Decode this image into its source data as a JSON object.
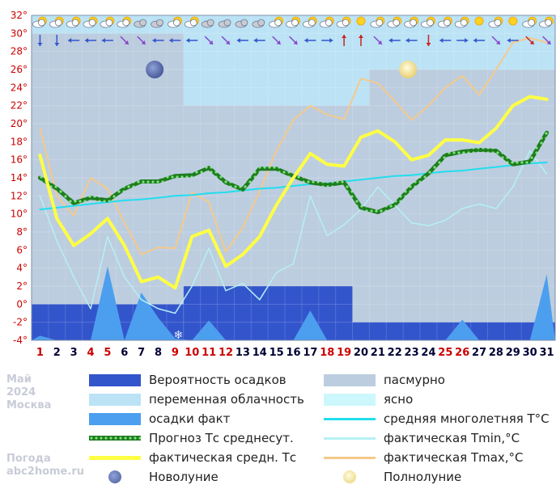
{
  "chart_data": {
    "type": "line",
    "x": [
      1,
      2,
      3,
      4,
      5,
      6,
      7,
      8,
      9,
      10,
      11,
      12,
      13,
      14,
      15,
      16,
      17,
      18,
      19,
      20,
      21,
      22,
      23,
      24,
      25,
      26,
      27,
      28,
      29,
      30,
      31
    ],
    "x_tick_labels": [
      "1",
      "2",
      "3",
      "4",
      "5",
      "6",
      "7",
      "8",
      "9",
      "10",
      "11",
      "12",
      "13",
      "14",
      "15",
      "16",
      "17",
      "18",
      "19",
      "20",
      "21",
      "22",
      "23",
      "24",
      "25",
      "26",
      "27",
      "28",
      "29",
      "30",
      "31"
    ],
    "holiday_days": [
      1,
      4,
      5,
      9,
      10,
      11,
      12,
      18,
      19,
      25,
      26
    ],
    "ylim": [
      -4,
      32
    ],
    "y_ticks": [
      "-4°",
      "-2°",
      "0°",
      "2°",
      "4°",
      "6°",
      "8°",
      "10°",
      "12°",
      "14°",
      "16°",
      "18°",
      "20°",
      "22°",
      "24°",
      "26°",
      "28°",
      "30°",
      "32°"
    ],
    "sky_bands": [
      {
        "from_day": 1,
        "to_day": 10,
        "value": 30,
        "kind": "partly_cloudy"
      },
      {
        "from_day": 10,
        "to_day": 20,
        "value": 22,
        "kind": "partly_cloudy"
      },
      {
        "from_day": 20,
        "to_day": 31,
        "value": 28,
        "kind": "clear"
      },
      {
        "from_day": 20,
        "to_day": 31,
        "value": 26,
        "kind": "partly_cloudy"
      }
    ],
    "precip_probability": [
      {
        "from_day": 1,
        "to_day": 10,
        "value": 0
      },
      {
        "from_day": 10,
        "to_day": 20,
        "value": 2
      },
      {
        "from_day": 20,
        "to_day": 31,
        "value": -2
      }
    ],
    "precip_actual": [
      -3.5,
      -4,
      -4,
      -4,
      4.2,
      -4,
      1.3,
      -1.5,
      -3.8,
      -4,
      -1.8,
      -4,
      -4,
      -4,
      -4,
      -4,
      -0.7,
      -4,
      -4,
      -4,
      -4,
      -4,
      -4,
      -4,
      -4,
      -1.7,
      -4,
      -4,
      -4,
      -4,
      3.3
    ],
    "series": [
      {
        "name": "фактическая Tmax,°C",
        "values": [
          19.5,
          12,
          9.8,
          14,
          12.8,
          9,
          5.5,
          6.3,
          6.2,
          12.4,
          11.3,
          5.8,
          8.5,
          12.5,
          17,
          20.4,
          22,
          21,
          20.5,
          25,
          24.5,
          22.5,
          20.4,
          22,
          24,
          25.3,
          23.2,
          26,
          29,
          29.5,
          29
        ]
      },
      {
        "name": "фактическая Tmin,°C",
        "values": [
          12,
          7,
          3,
          -0.5,
          7.5,
          3,
          0.5,
          -0.5,
          -1,
          2,
          6.2,
          1.5,
          2.3,
          0.5,
          3.5,
          4.5,
          12,
          7.6,
          8.8,
          10.5,
          13,
          11,
          9,
          8.7,
          9.3,
          10.6,
          11.1,
          10.6,
          13,
          17,
          14.4
        ]
      },
      {
        "name": "средняя многолетняя Т°С",
        "values": [
          10.5,
          10.7,
          10.9,
          11.1,
          11.3,
          11.5,
          11.6,
          11.8,
          12.0,
          12.1,
          12.3,
          12.4,
          12.6,
          12.8,
          12.9,
          13.1,
          13.3,
          13.4,
          13.6,
          13.8,
          14.0,
          14.2,
          14.3,
          14.5,
          14.7,
          14.8,
          15.0,
          15.2,
          15.4,
          15.6,
          15.7
        ]
      },
      {
        "name": "Прогноз Тс среднесут.",
        "values": [
          14,
          12.8,
          11.2,
          11.8,
          11.5,
          12.8,
          13.6,
          13.6,
          14.2,
          14.3,
          15.1,
          13.5,
          12.7,
          15,
          15,
          14.2,
          13.5,
          13.2,
          13.5,
          10.7,
          10.2,
          11,
          13,
          14.5,
          16.5,
          16.9,
          17.1,
          17,
          15.5,
          15.8,
          19
        ]
      },
      {
        "name": "фактическая средн. Тс",
        "values": [
          16.5,
          9.5,
          6.5,
          7.8,
          9.5,
          6.5,
          2.5,
          3,
          1.8,
          7.5,
          8.2,
          4.2,
          5.5,
          7.5,
          11,
          14,
          16.7,
          15.5,
          15.3,
          18.5,
          19.2,
          18,
          16,
          16.5,
          18.2,
          18.2,
          17.9,
          19.5,
          22,
          23,
          22.7
        ]
      }
    ],
    "moon_phases": [
      {
        "day": 8,
        "name": "Новолуние",
        "value": 26
      },
      {
        "day": 23,
        "name": "Полнолуние",
        "value": 26
      }
    ],
    "snow_marker_day": 9,
    "weather_icons": [
      "partly_cloudy",
      "partly_cloudy",
      "partly_cloudy",
      "partly_cloudy",
      "partly_cloudy",
      "partly_cloudy",
      "cloudy",
      "cloudy",
      "partly_cloudy",
      "partly_cloudy",
      "cloudy",
      "cloudy",
      "cloudy",
      "cloudy",
      "partly_cloudy",
      "partly_cloudy",
      "partly_cloudy",
      "partly_cloudy",
      "partly_cloudy",
      "sunny",
      "partly_cloudy",
      "partly_cloudy",
      "partly_cloudy",
      "partly_cloudy",
      "partly_cloudy",
      "partly_cloudy",
      "sunny",
      "partly_cloudy",
      "sunny",
      "partly_cloudy",
      "partly_cloudy"
    ],
    "wind_arrows": [
      {
        "kind": "down",
        "color": "#3355cc"
      },
      {
        "kind": "down",
        "color": "#3355cc"
      },
      {
        "kind": "left",
        "color": "#3355cc"
      },
      {
        "kind": "left",
        "color": "#3355cc"
      },
      {
        "kind": "left",
        "color": "#3355cc"
      },
      {
        "kind": "dr",
        "color": "#8844cc"
      },
      {
        "kind": "dr",
        "color": "#8844cc"
      },
      {
        "kind": "left",
        "color": "#3355cc"
      },
      {
        "kind": "left",
        "color": "#3355cc"
      },
      {
        "kind": "left",
        "color": "#3355cc"
      },
      {
        "kind": "dr",
        "color": "#8844cc"
      },
      {
        "kind": "dr",
        "color": "#8844cc"
      },
      {
        "kind": "left",
        "color": "#3355cc"
      },
      {
        "kind": "left",
        "color": "#3355cc"
      },
      {
        "kind": "dr",
        "color": "#8844cc"
      },
      {
        "kind": "dr",
        "color": "#8844cc"
      },
      {
        "kind": "left",
        "color": "#3355cc"
      },
      {
        "kind": "right",
        "color": "#3355cc"
      },
      {
        "kind": "up",
        "color": "#cc2222"
      },
      {
        "kind": "up",
        "color": "#cc2222"
      },
      {
        "kind": "dr",
        "color": "#8844cc"
      },
      {
        "kind": "left",
        "color": "#3355cc"
      },
      {
        "kind": "left",
        "color": "#3355cc"
      },
      {
        "kind": "down",
        "color": "#cc2222"
      },
      {
        "kind": "left",
        "color": "#3355cc"
      },
      {
        "kind": "right",
        "color": "#3355cc"
      },
      {
        "kind": "left",
        "color": "#3355cc"
      },
      {
        "kind": "dr",
        "color": "#8844cc"
      },
      {
        "kind": "left",
        "color": "#3355cc"
      },
      {
        "kind": "dr",
        "color": "#cc2222"
      },
      {
        "kind": "dr",
        "color": "#8844cc"
      }
    ],
    "grid": true,
    "legend_position": "bottom"
  },
  "colors": {
    "precip_probability": "#3355cc",
    "partly_cloudy": "#bbe3f5",
    "overcast": "#bccddf",
    "clear": "#ccf7fc",
    "precip_actual": "#4c9fee",
    "forecast_mean": "#229922",
    "avg_multi_year": "#22ddee",
    "actual_tmin": "#b5f0f5",
    "actual_mean": "#ffff44",
    "actual_tmax": "#f5c98a",
    "holiday_text": "#cc0000",
    "axis_text": "#cc0000",
    "day_text": "#000033"
  },
  "legend": [
    {
      "label": "Вероятность осадков",
      "swatch": "block",
      "color_key": "precip_probability"
    },
    {
      "label": "пасмурно",
      "swatch": "block",
      "color_key": "overcast"
    },
    {
      "label": "переменная облачность",
      "swatch": "block",
      "color_key": "partly_cloudy"
    },
    {
      "label": "ясно",
      "swatch": "block",
      "color_key": "clear"
    },
    {
      "label": "осадки факт",
      "swatch": "block",
      "color_key": "precip_actual"
    },
    {
      "label": "средняя многолетняя Т°С",
      "swatch": "line",
      "color_key": "avg_multi_year"
    },
    {
      "label": "Прогноз Тс среднесут.",
      "swatch": "dotted",
      "color_key": "forecast_mean"
    },
    {
      "label": "фактическая Tmin,°C",
      "swatch": "line",
      "color_key": "actual_tmin"
    },
    {
      "label": "фактическая средн. Тс",
      "swatch": "thick",
      "color_key": "actual_mean"
    },
    {
      "label": "фактическая Tmax,°C",
      "swatch": "line",
      "color_key": "actual_tmax"
    },
    {
      "label": "Новолуние",
      "swatch": "newmoon"
    },
    {
      "label": "Полнолуние",
      "swatch": "fullmoon"
    }
  ],
  "caption": {
    "month": "Май",
    "year": "2024",
    "city": "Москва",
    "site_name": "Погода",
    "site_domain": "abc2home.ru"
  }
}
